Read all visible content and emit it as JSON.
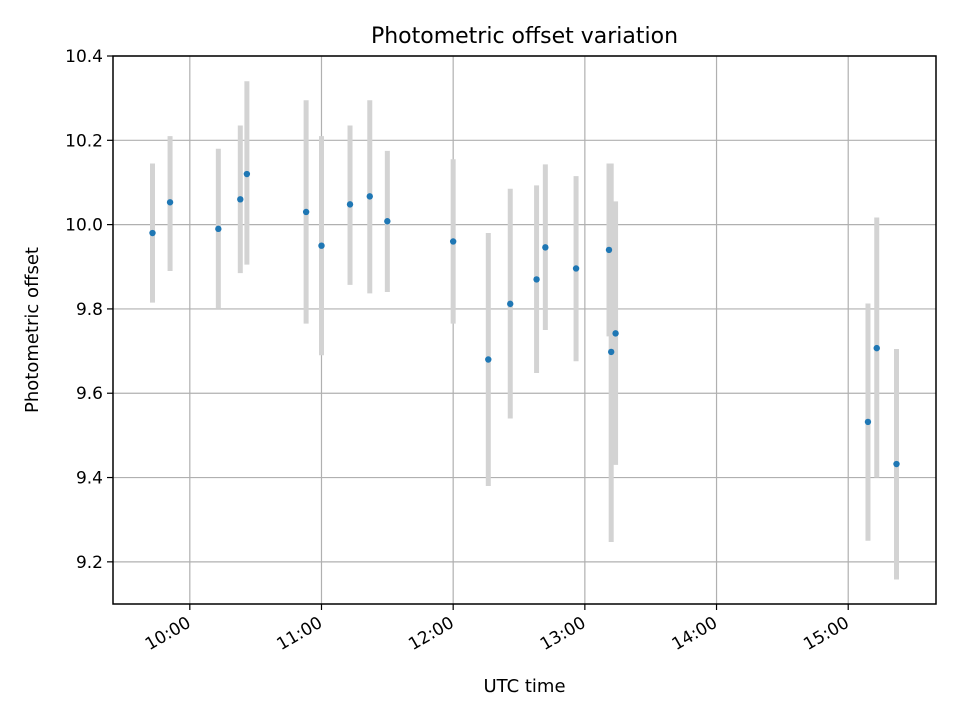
{
  "chart_data": {
    "type": "scatter",
    "title": "Photometric offset variation",
    "xlabel": "UTC time",
    "ylabel": "Photometric offset",
    "x_is_time": true,
    "xlim": [
      "09:25",
      "15:40"
    ],
    "ylim": [
      9.1,
      10.4
    ],
    "x_ticks": [
      "10:00",
      "11:00",
      "12:00",
      "13:00",
      "14:00",
      "15:00"
    ],
    "y_ticks": [
      "9.2",
      "9.4",
      "9.6",
      "9.8",
      "10.0",
      "10.2",
      "10.4"
    ],
    "grid": true,
    "point_color": "#1f77b4",
    "errorbar_color": "#d3d3d3",
    "points": [
      {
        "time": "09:43",
        "y": 9.98,
        "low": 9.815,
        "high": 10.145
      },
      {
        "time": "09:51",
        "y": 10.053,
        "low": 9.89,
        "high": 10.21
      },
      {
        "time": "10:13",
        "y": 9.99,
        "low": 9.8,
        "high": 10.18
      },
      {
        "time": "10:23",
        "y": 10.06,
        "low": 9.885,
        "high": 10.235
      },
      {
        "time": "10:26",
        "y": 10.12,
        "low": 9.905,
        "high": 10.34
      },
      {
        "time": "10:53",
        "y": 10.03,
        "low": 9.765,
        "high": 10.295
      },
      {
        "time": "11:00",
        "y": 9.95,
        "low": 9.69,
        "high": 10.21
      },
      {
        "time": "11:13",
        "y": 10.048,
        "low": 9.857,
        "high": 10.235
      },
      {
        "time": "11:22",
        "y": 10.067,
        "low": 9.837,
        "high": 10.295
      },
      {
        "time": "11:30",
        "y": 10.008,
        "low": 9.84,
        "high": 10.175
      },
      {
        "time": "12:00",
        "y": 9.96,
        "low": 9.765,
        "high": 10.155
      },
      {
        "time": "12:16",
        "y": 9.68,
        "low": 9.38,
        "high": 9.98
      },
      {
        "time": "12:26",
        "y": 9.812,
        "low": 9.54,
        "high": 10.085
      },
      {
        "time": "12:38",
        "y": 9.87,
        "low": 9.648,
        "high": 10.093
      },
      {
        "time": "12:42",
        "y": 9.946,
        "low": 9.75,
        "high": 10.143
      },
      {
        "time": "12:56",
        "y": 9.896,
        "low": 9.676,
        "high": 10.115
      },
      {
        "time": "13:11",
        "y": 9.94,
        "low": 9.735,
        "high": 10.145
      },
      {
        "time": "13:12",
        "y": 9.698,
        "low": 9.247,
        "high": 10.145
      },
      {
        "time": "13:14",
        "y": 9.742,
        "low": 9.43,
        "high": 10.055
      },
      {
        "time": "15:09",
        "y": 9.532,
        "low": 9.25,
        "high": 9.813
      },
      {
        "time": "15:13",
        "y": 9.707,
        "low": 9.4,
        "high": 10.017
      },
      {
        "time": "15:22",
        "y": 9.432,
        "low": 9.158,
        "high": 9.705
      }
    ]
  }
}
